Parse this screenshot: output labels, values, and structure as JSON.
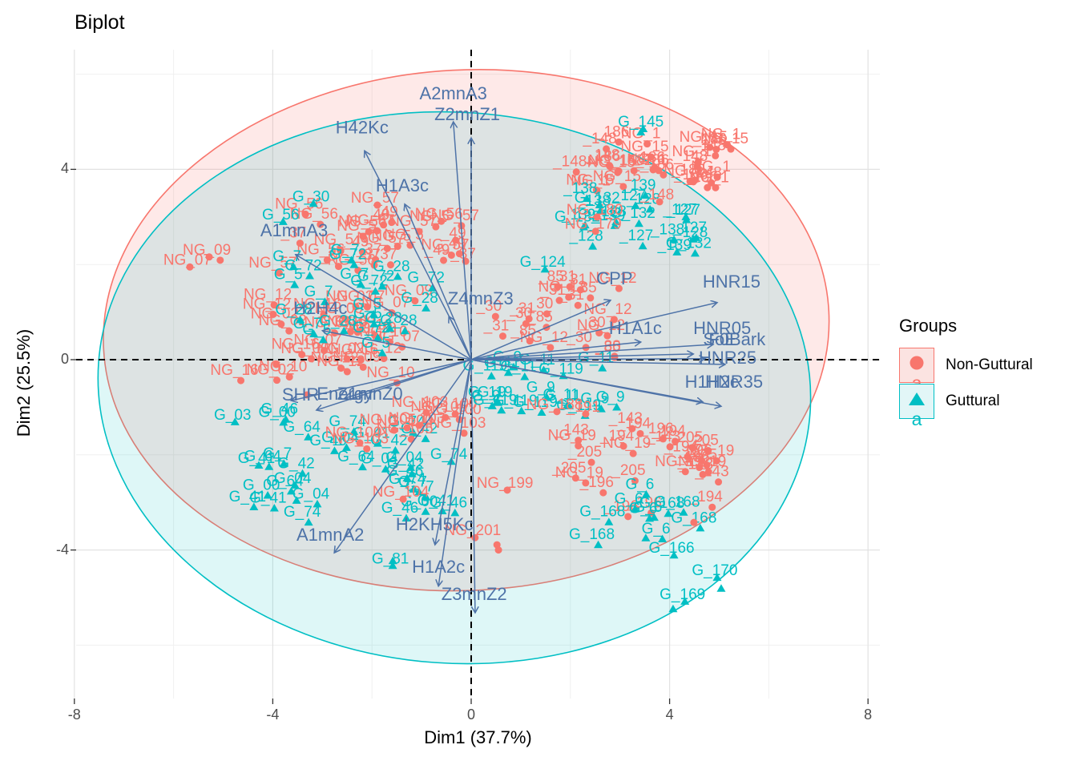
{
  "title": "Biplot",
  "axes": {
    "x": {
      "label": "Dim1 (37.7%)"
    },
    "y": {
      "label": "Dim2 (25.5%)"
    }
  },
  "legend": {
    "title": "Groups",
    "items": [
      {
        "label": "Non-Guttural",
        "letter": "a",
        "glyph": "circle",
        "color": "#F8766D",
        "fill": "#FBE3E1"
      },
      {
        "label": "Guttural",
        "letter": "a",
        "glyph": "triangle",
        "color": "#00BFC4",
        "fill": "#E2F6F7"
      }
    ]
  },
  "colors": {
    "non_guttural": "#F8766D",
    "guttural": "#00BFC4",
    "variable": "#4E73A8",
    "grid_major": "#E2E2E2",
    "grid_minor": "#F0F0F0",
    "dashed_axis": "#000000",
    "tick_text": "#4D4D4D"
  },
  "chart_data": {
    "type": "scatter",
    "subtype": "pca-biplot",
    "title": "Biplot",
    "xlabel": "Dim1 (37.7%)",
    "ylabel": "Dim2 (25.5%)",
    "xlim": [
      -8.3,
      8.5
    ],
    "ylim": [
      -7.1,
      6.5
    ],
    "x_ticks": [
      -8,
      -4,
      0,
      4,
      8
    ],
    "y_ticks": [
      -4,
      0,
      4
    ],
    "x_minor_ticks": [
      -6,
      -2,
      2,
      6
    ],
    "y_minor_ticks": [
      -6,
      -2,
      2,
      6
    ],
    "grid": true,
    "legend_position": "right",
    "groups": [
      {
        "name": "Non-Guttural",
        "key": "NG",
        "color": "#F8766D",
        "marker": "circle"
      },
      {
        "name": "Guttural",
        "key": "G",
        "color": "#00BFC4",
        "marker": "triangle"
      }
    ],
    "ellipses": [
      {
        "group": "Non-Guttural",
        "cx": -0.1,
        "cy": 0.62,
        "rx": 7.32,
        "ry": 5.47,
        "angle": -3
      },
      {
        "group": "Guttural",
        "cx": -0.34,
        "cy": -0.59,
        "rx": 7.19,
        "ry": 5.79,
        "angle": 4
      }
    ],
    "variables": [
      {
        "name": "A2mnA3",
        "tip": [
          -0.36,
          5.0
        ],
        "label": [
          -0.36,
          5.59
        ]
      },
      {
        "name": "Z2mnZ1",
        "tip": [
          0.0,
          4.66
        ],
        "label": [
          -0.08,
          5.15
        ]
      },
      {
        "name": "H42Kc",
        "tip": [
          -2.15,
          4.39
        ],
        "label": [
          -2.2,
          4.87
        ]
      },
      {
        "name": "H1A3c",
        "tip": [
          -1.34,
          3.27
        ],
        "label": [
          -1.39,
          3.65
        ]
      },
      {
        "name": "A1mnA3",
        "tip": [
          -3.54,
          2.21
        ],
        "label": [
          -3.57,
          2.71
        ]
      },
      {
        "name": "H2H4c",
        "tip": [
          -3.0,
          0.61
        ],
        "label": [
          -3.04,
          1.08
        ]
      },
      {
        "name": "Z4mnZ3",
        "tip": [
          -0.45,
          0.91
        ],
        "label": [
          0.19,
          1.28
        ]
      },
      {
        "name": "SHR",
        "tip": [
          -3.63,
          -0.86
        ],
        "label": [
          -3.44,
          -0.74
        ]
      },
      {
        "name": "Energy",
        "tip": [
          -3.12,
          -1.06
        ],
        "label": [
          -2.55,
          -0.72
        ]
      },
      {
        "name": "Z1mnZ0",
        "tip": [
          -2.55,
          -0.81
        ],
        "label": [
          -2.04,
          -0.72
        ]
      },
      {
        "name": "CPP",
        "tip": [
          2.81,
          1.25
        ],
        "label": [
          2.89,
          1.7
        ]
      },
      {
        "name": "HNR15",
        "tip": [
          4.96,
          1.2
        ],
        "label": [
          5.25,
          1.63
        ]
      },
      {
        "name": "H1A1c",
        "tip": [
          3.42,
          0.37
        ],
        "label": [
          3.31,
          0.66
        ]
      },
      {
        "name": "HNR05",
        "tip": [
          4.88,
          0.32
        ],
        "label": [
          5.06,
          0.66
        ]
      },
      {
        "name": "SoE",
        "tip": [
          4.48,
          0.12
        ],
        "label": [
          5.01,
          0.42
        ]
      },
      {
        "name": "F0Bark",
        "tip": [
          4.72,
          0.02
        ],
        "label": [
          5.36,
          0.42
        ]
      },
      {
        "name": "HNR25",
        "tip": [
          5.12,
          -0.1
        ],
        "label": [
          5.17,
          0.03
        ]
      },
      {
        "name": "H1H2c",
        "tip": [
          4.67,
          -0.89
        ],
        "label": [
          4.85,
          -0.47
        ]
      },
      {
        "name": "HNR35",
        "tip": [
          5.04,
          -0.98
        ],
        "label": [
          5.3,
          -0.47
        ]
      },
      {
        "name": "A1mnA2",
        "tip": [
          -2.76,
          -4.06
        ],
        "label": [
          -2.84,
          -3.69
        ]
      },
      {
        "name": "H2KH5Kc",
        "tip": [
          -0.73,
          -3.89
        ],
        "label": [
          -0.74,
          -3.47
        ]
      },
      {
        "name": "H1A2c",
        "tip": [
          -0.66,
          -4.76
        ],
        "label": [
          -0.66,
          -4.36
        ]
      },
      {
        "name": "Z3mnZ2",
        "tip": [
          0.08,
          -5.32
        ],
        "label": [
          0.06,
          -4.93
        ]
      }
    ],
    "points": [
      {
        "t": "G_145",
        "g": "G",
        "x": 3.42,
        "y": 5.0
      },
      {
        "t": "_186",
        "g": "NG",
        "x": 4.43,
        "y": 3.89
      },
      {
        "t": "_148",
        "g": "NG",
        "x": 3.75,
        "y": 3.47
      },
      {
        "t": "NG_180",
        "g": "NG",
        "x": 2.49,
        "y": 3.15
      },
      {
        "t": "NG_179",
        "g": "NG",
        "x": 2.46,
        "y": 2.85
      },
      {
        "t": "_127",
        "g": "G",
        "x": 4.28,
        "y": 3.15
      },
      {
        "t": "_128",
        "g": "G",
        "x": 4.43,
        "y": 2.68
      },
      {
        "t": "_139",
        "g": "G",
        "x": 4.1,
        "y": 2.41
      },
      {
        "t": "G_132",
        "g": "G",
        "x": 2.54,
        "y": 3.4
      },
      {
        "t": "G_124",
        "g": "G",
        "x": 1.44,
        "y": 2.05
      },
      {
        "t": "G_30",
        "g": "G",
        "x": -3.23,
        "y": 3.43
      },
      {
        "t": "NG_57",
        "g": "NG",
        "x": -1.94,
        "y": 3.4
      },
      {
        "t": "G_56",
        "g": "G",
        "x": -3.84,
        "y": 3.05
      },
      {
        "t": "NG_56",
        "g": "NG",
        "x": -0.65,
        "y": 3.06
      },
      {
        "t": "_49",
        "g": "NG",
        "x": -0.36,
        "y": 2.66
      },
      {
        "t": "_37",
        "g": "NG",
        "x": -0.16,
        "y": 2.22
      },
      {
        "t": "NG_09",
        "g": "NG",
        "x": -5.33,
        "y": 2.31
      },
      {
        "t": "NG_07",
        "g": "NG",
        "x": -5.72,
        "y": 2.1
      },
      {
        "t": "G_03",
        "g": "G",
        "x": -4.81,
        "y": -1.16
      },
      {
        "t": "G_41",
        "g": "G",
        "x": -4.33,
        "y": -2.07
      },
      {
        "t": "G_04",
        "g": "G",
        "x": -3.6,
        "y": -2.49
      },
      {
        "t": "G_46",
        "g": "G",
        "x": -1.34,
        "y": -2.34
      },
      {
        "t": "G_74",
        "g": "G",
        "x": -0.45,
        "y": -1.99
      },
      {
        "t": "G_81",
        "g": "G",
        "x": -1.63,
        "y": -4.18
      },
      {
        "t": "NG_100",
        "g": "NG",
        "x": -1.34,
        "y": -1.28
      },
      {
        "t": "NG_103",
        "g": "NG",
        "x": -1.1,
        "y": -1.23
      },
      {
        "t": "NG_104",
        "g": "NG",
        "x": -1.42,
        "y": -2.78
      },
      {
        "t": "NG_199",
        "g": "NG",
        "x": 0.68,
        "y": -2.59
      },
      {
        "t": "NG_201",
        "g": "NG",
        "x": 0.03,
        "y": -3.59
      },
      {
        "t": "NG_188",
        "g": "NG",
        "x": 1.68,
        "y": -0.94
      },
      {
        "t": "_191",
        "g": "NG",
        "x": 2.26,
        "y": -0.99
      },
      {
        "t": "G_119",
        "g": "G",
        "x": 1.81,
        "y": -0.19
      },
      {
        "t": "G_166",
        "g": "G",
        "x": 4.04,
        "y": -3.96
      },
      {
        "t": "G_170",
        "g": "G",
        "x": 4.91,
        "y": -4.43
      },
      {
        "t": "G_169",
        "g": "G",
        "x": 4.26,
        "y": -4.93
      }
    ],
    "clusters": [
      {
        "g": "NG",
        "cx": -2.15,
        "cy": 2.59,
        "w": 3.7,
        "h": 1.3,
        "copies": 26,
        "labels": [
          "NG_57",
          "NG_56",
          "_49",
          "_37",
          "NG_5"
        ]
      },
      {
        "g": "NG",
        "cx": -3.04,
        "cy": 0.57,
        "w": 3.9,
        "h": 1.9,
        "copies": 30,
        "labels": [
          "NG_09",
          "NG_07",
          "NG_02",
          "NG_10",
          "NG_12",
          "NG_16"
        ]
      },
      {
        "g": "G",
        "cx": -2.31,
        "cy": 1.25,
        "w": 2.9,
        "h": 2.0,
        "copies": 22,
        "labels": [
          "G_72",
          "G_28",
          "G_5",
          "G_7"
        ]
      },
      {
        "g": "G",
        "cx": -2.55,
        "cy": -2.21,
        "w": 4.2,
        "h": 2.2,
        "copies": 30,
        "labels": [
          "G_04",
          "G_41",
          "G_42",
          "G_46",
          "G_74",
          "G_64",
          "G_00",
          "G_7"
        ]
      },
      {
        "g": "NG",
        "cx": -1.42,
        "cy": -1.36,
        "w": 2.6,
        "h": 0.85,
        "copies": 9,
        "labels": [
          "NG_100",
          "NG_103",
          "NG_105"
        ]
      },
      {
        "g": "NG",
        "cx": 1.65,
        "cy": 0.91,
        "w": 2.75,
        "h": 1.5,
        "copies": 22,
        "labels": [
          "_30",
          "_31",
          "_85",
          "NG_12"
        ]
      },
      {
        "g": "G",
        "cx": 1.65,
        "cy": -0.52,
        "w": 2.9,
        "h": 1.35,
        "copies": 18,
        "labels": [
          "G_119",
          "G_11",
          "G_9"
        ]
      },
      {
        "g": "NG",
        "cx": 3.42,
        "cy": 4.19,
        "w": 3.4,
        "h": 1.05,
        "copies": 30,
        "labels": [
          "NG_1",
          "_186",
          "_148",
          "NG_15"
        ]
      },
      {
        "g": "G",
        "cx": 3.42,
        "cy": 2.93,
        "w": 2.75,
        "h": 1.35,
        "copies": 16,
        "labels": [
          "_127",
          "_128",
          "_139",
          "_138",
          "G_132"
        ]
      },
      {
        "g": "NG",
        "cx": 3.26,
        "cy": -2.21,
        "w": 3.2,
        "h": 1.95,
        "copies": 28,
        "labels": [
          "NG_19",
          "_205",
          "_196",
          "_194",
          "_143"
        ]
      },
      {
        "g": "G",
        "cx": 3.42,
        "cy": -3.22,
        "w": 2.4,
        "h": 1.25,
        "copies": 10,
        "labels": [
          "G_168",
          "G_6"
        ]
      }
    ],
    "extra_markers": [
      {
        "g": "G",
        "x": 3.52,
        "y": -3.75
      },
      {
        "g": "G",
        "x": 4.07,
        "y": -5.24
      },
      {
        "g": "G",
        "x": 5.04,
        "y": -4.81
      },
      {
        "g": "G",
        "x": 3.42,
        "y": 4.78
      },
      {
        "g": "G",
        "x": -1.58,
        "y": -4.23
      },
      {
        "g": "G",
        "x": -3.52,
        "y": -2.96
      },
      {
        "g": "NG",
        "x": -5.06,
        "y": 2.09
      },
      {
        "g": "NG",
        "x": -3.93,
        "y": -0.1
      },
      {
        "g": "NG",
        "x": -3.31,
        "y": -0.74
      },
      {
        "g": "NG",
        "x": 4.49,
        "y": -3.42
      },
      {
        "g": "NG",
        "x": 0.52,
        "y": -3.89
      },
      {
        "g": "NG",
        "x": 0.55,
        "y": -4.0
      }
    ]
  }
}
